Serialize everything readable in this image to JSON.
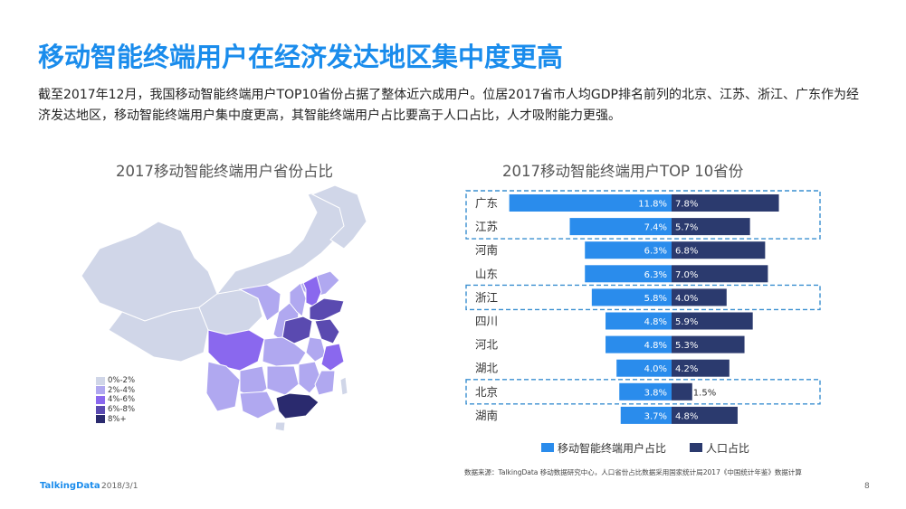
{
  "page": {
    "title": "移动智能终端用户在经济发达地区集中度更高",
    "description": "截至2017年12月，我国移动智能终端用户TOP10省份占据了整体近六成用户。位居2017省市人均GDP排名前列的北京、江苏、浙江、广东作为经济发达地区，移动智能终端用户集中度更高，其智能终端用户占比要高于人口占比，人才吸附能力更强。",
    "map_title": "2017移动智能终端用户省份占比",
    "bar_title": "2017移动智能终端用户TOP 10省份",
    "footer_logo": "TalkingData",
    "footer_date": "2018/3/1",
    "footer_source": "数据来源：TalkingData 移动数据研究中心，人口省份占比数据采用国家统计局2017《中国统计年鉴》数据计算",
    "page_number": "8"
  },
  "map_legend": [
    {
      "label": "0%-2%",
      "color": "#d0d6e8"
    },
    {
      "label": "2%-4%",
      "color": "#b0a8f0"
    },
    {
      "label": "4%-6%",
      "color": "#8a68ee"
    },
    {
      "label": "6%-8%",
      "color": "#5a4ab0"
    },
    {
      "label": "8%+",
      "color": "#2a2a6e"
    }
  ],
  "colors": {
    "user_share": "#2a8cec",
    "population_share": "#2b3a6e",
    "highlight_border": "#3a8fd0",
    "title": "#1a8cec"
  },
  "chart_data": {
    "type": "bar",
    "orientation": "horizontal-diverging",
    "title": "2017移动智能终端用户TOP 10省份",
    "categories": [
      "广东",
      "江苏",
      "河南",
      "山东",
      "浙江",
      "四川",
      "河北",
      "湖北",
      "北京",
      "湖南"
    ],
    "series": [
      {
        "name": "移动智能终端用户占比",
        "values": [
          11.8,
          7.4,
          6.3,
          6.3,
          5.8,
          4.8,
          4.8,
          4.0,
          3.8,
          3.7
        ],
        "labels": [
          "11.8%",
          "7.4%",
          "6.3%",
          "6.3%",
          "5.8%",
          "4.8%",
          "4.8%",
          "4.0%",
          "3.8%",
          "3.7%"
        ]
      },
      {
        "name": "人口占比",
        "values": [
          7.8,
          5.7,
          6.8,
          7.0,
          4.0,
          5.9,
          5.3,
          4.2,
          1.5,
          4.8
        ],
        "labels": [
          "7.8%",
          "5.7%",
          "6.8%",
          "7.0%",
          "4.0%",
          "5.9%",
          "5.3%",
          "4.2%",
          "1.5%",
          "4.8%"
        ]
      }
    ],
    "highlighted_groups": [
      [
        "广东",
        "江苏"
      ],
      [
        "浙江"
      ],
      [
        "北京"
      ]
    ],
    "legend_position": "bottom"
  }
}
